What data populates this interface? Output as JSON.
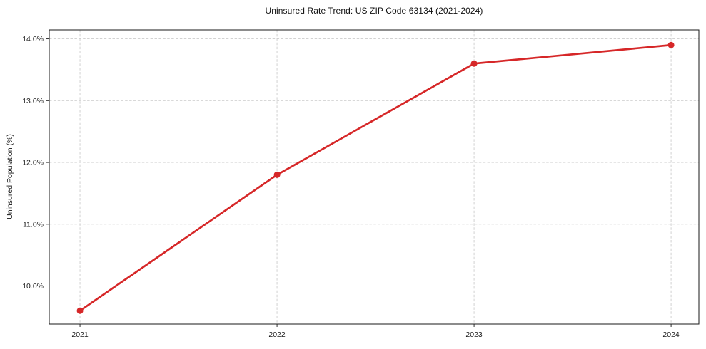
{
  "page": {
    "background_color": "#ffffff"
  },
  "chart_data": {
    "type": "line",
    "title": "Uninsured Rate Trend: US ZIP Code 63134 (2021-2024)",
    "xlabel": "",
    "ylabel": "Uninsured Population (%)",
    "x": [
      2021,
      2022,
      2023,
      2024
    ],
    "series": [
      {
        "name": "Uninsured rate",
        "color": "#d62728",
        "marker": "circle",
        "values": [
          9.6,
          11.8,
          13.6,
          13.9
        ]
      }
    ],
    "x_tick_values": [
      2021,
      2022,
      2023,
      2024
    ],
    "x_tick_labels": [
      "2021",
      "2022",
      "2023",
      "2024"
    ],
    "y_tick_values": [
      10.0,
      11.0,
      12.0,
      13.0,
      14.0
    ],
    "y_tick_labels": [
      "10.0%",
      "11.0%",
      "12.0%",
      "13.0%",
      "14.0%"
    ],
    "xlim": [
      2020.844,
      2024.141
    ],
    "ylim": [
      9.384,
      14.145
    ],
    "grid": true,
    "grid_style": "dashed",
    "grid_color": "#cccccc",
    "axis_color": "#1a1a1a",
    "legend_position": "none"
  }
}
